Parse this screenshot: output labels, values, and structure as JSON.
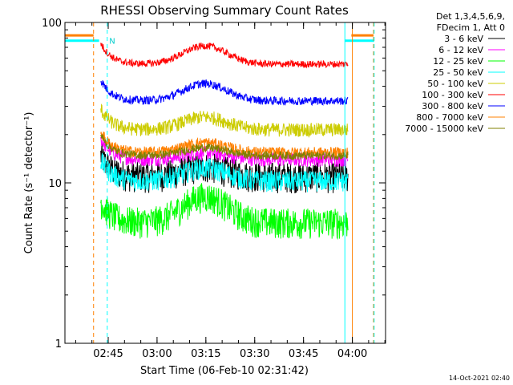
{
  "chart_data": {
    "type": "line",
    "title": "RHESSI Observing Summary Count Rates",
    "xlabel": "Start Time (06-Feb-10 02:31:42)",
    "ylabel": "Count Rate (s⁻¹ detector⁻¹)",
    "yscale": "log",
    "ylim": [
      1,
      100
    ],
    "xlim_minutes": [
      0,
      98.5
    ],
    "x_ticks": [
      {
        "minute": 13.3,
        "label": "02:45"
      },
      {
        "minute": 28.3,
        "label": "03:00"
      },
      {
        "minute": 43.3,
        "label": "03:15"
      },
      {
        "minute": 58.3,
        "label": "03:30"
      },
      {
        "minute": 73.3,
        "label": "03:45"
      },
      {
        "minute": 88.3,
        "label": "04:00"
      }
    ],
    "y_ticks": [
      {
        "value": 1,
        "label": "1"
      },
      {
        "value": 10,
        "label": "10"
      },
      {
        "value": 100,
        "label": "100"
      }
    ],
    "legend_header": [
      "Det 1,3,4,5,6,9,",
      "FDecim 1, Att 0"
    ],
    "series": [
      {
        "name": "3 - 6 keV",
        "color": "#000000",
        "start": 11,
        "end": 87,
        "base": 11.0,
        "hump": 1.15,
        "noise": 0.22
      },
      {
        "name": "6 - 12 keV",
        "color": "#ff00ff",
        "start": 11,
        "end": 87,
        "base": 14.0,
        "hump": 1.1,
        "noise": 0.1
      },
      {
        "name": "12 - 25 keV",
        "color": "#00ff00",
        "start": 11,
        "end": 87,
        "base": 5.7,
        "hump": 1.45,
        "noise": 0.22
      },
      {
        "name": "25 - 50 keV",
        "color": "#00ffff",
        "start": 11,
        "end": 87,
        "base": 10.3,
        "hump": 1.2,
        "noise": 0.15
      },
      {
        "name": "50 - 100 keV",
        "color": "#cccc00",
        "start": 11,
        "end": 87,
        "base": 21.5,
        "hump": 1.2,
        "noise": 0.1
      },
      {
        "name": "100 - 300 keV",
        "color": "#ff0000",
        "start": 11,
        "end": 87,
        "base": 55.0,
        "hump": 1.3,
        "noise": 0.05
      },
      {
        "name": "300 - 800 keV",
        "color": "#0000ff",
        "start": 11,
        "end": 87,
        "base": 32.5,
        "hump": 1.28,
        "noise": 0.06
      },
      {
        "name": "800 - 7000 keV",
        "color": "#ff8000",
        "start": 11,
        "end": 87,
        "base": 15.5,
        "hump": 1.15,
        "noise": 0.08
      },
      {
        "name": "7000 - 15000 keV",
        "color": "#808000",
        "start": 11,
        "end": 87,
        "base": 14.8,
        "hump": 1.12,
        "noise": 0.06
      }
    ],
    "saa_segments": [
      {
        "color": "#ff8000",
        "x_start": 0,
        "x_end": 8.8,
        "value": 83
      },
      {
        "color": "#00ffff",
        "x_start": 0,
        "x_end": 10.5,
        "value": 77
      },
      {
        "color": "#ff8000",
        "x_start": 88.0,
        "x_end": 94.8,
        "value": 83
      },
      {
        "color": "#00ffff",
        "x_start": 86.0,
        "x_end": 95.0,
        "value": 77
      }
    ],
    "night_markers": [
      {
        "color": "#00ffff",
        "minute": 0.0,
        "style": "solid"
      },
      {
        "color": "#ff8000",
        "minute": 8.8,
        "style": "dashed"
      },
      {
        "color": "#00ffff",
        "minute": 13.0,
        "style": "dashed"
      },
      {
        "color": "#00ffff",
        "minute": 86.0,
        "style": "solid"
      },
      {
        "color": "#ff8000",
        "minute": 88.3,
        "style": "solid"
      },
      {
        "color": "#ff8000",
        "minute": 94.8,
        "style": "dashed"
      },
      {
        "color": "#00ffff",
        "minute": 95.0,
        "style": "dashed"
      }
    ],
    "flag_label": "N",
    "date_stamp": "14-Oct-2021 02:40"
  }
}
